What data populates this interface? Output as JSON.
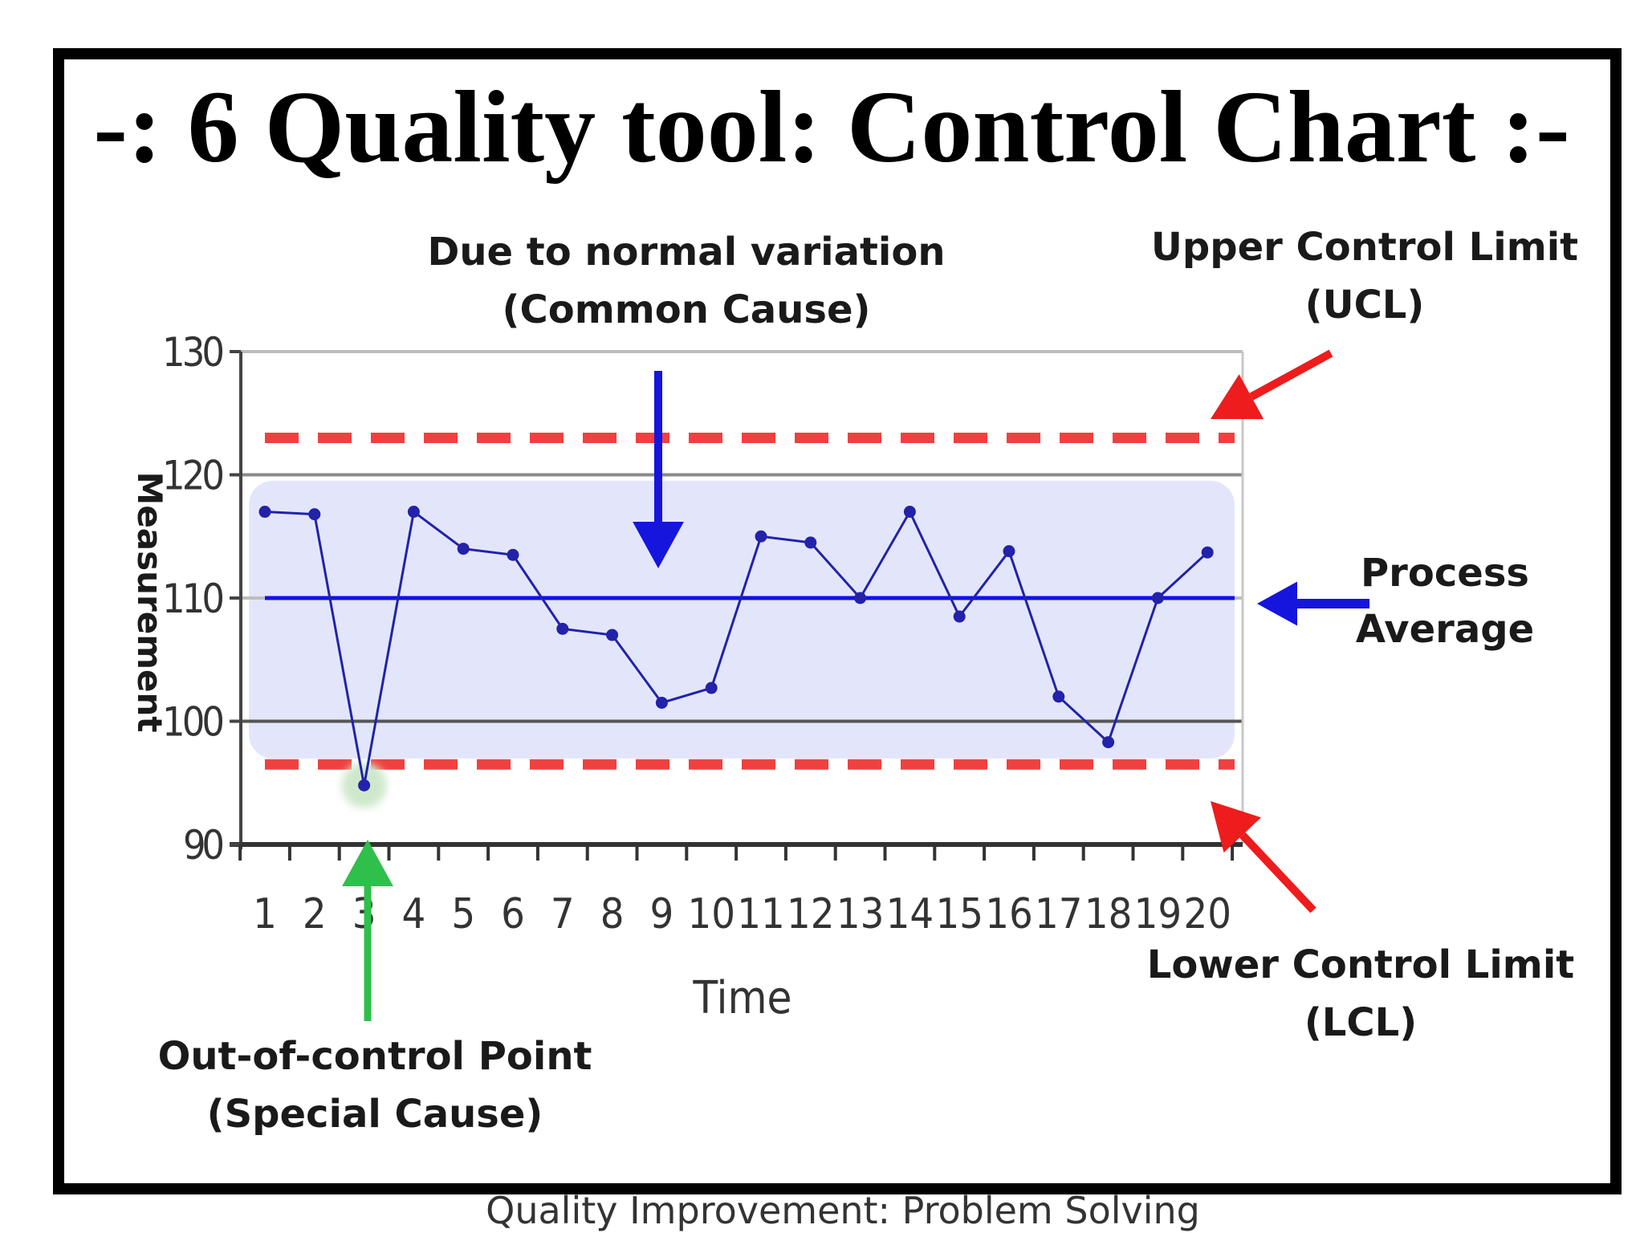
{
  "title": "-: 6 Quality tool: Control Chart :-",
  "footer": "Quality Improvement: Problem Solving",
  "annotations": {
    "common_cause_line1": "Due to normal variation",
    "common_cause_line2": "(Common Cause)",
    "ucl_line1": "Upper Control Limit",
    "ucl_line2": "(UCL)",
    "process_avg_line1": "Process",
    "process_avg_line2": "Average",
    "lcl_line1": "Lower Control Limit",
    "lcl_line2": "(LCL)",
    "special_cause_line1": "Out-of-control Point",
    "special_cause_line2": "(Special Cause)"
  },
  "colors": {
    "series": "#2222aa",
    "average_line": "#1010ee",
    "control_limits": "#f04040",
    "band": "#e3e6fb",
    "arrow_blue": "#1515dd",
    "arrow_red": "#ee1c1c",
    "arrow_green": "#2ec04a",
    "highlight": "#cfe8cc"
  },
  "icons": {
    "common_cause_arrow": "down-arrow",
    "ucl_arrow": "diagonal-arrow",
    "process_average_arrow": "left-arrow",
    "lcl_arrow": "diagonal-arrow",
    "special_cause_arrow": "up-arrow"
  },
  "chart_data": {
    "type": "line",
    "xlabel": "Time",
    "ylabel": "Measurement",
    "x": [
      1,
      2,
      3,
      4,
      5,
      6,
      7,
      8,
      9,
      10,
      11,
      12,
      13,
      14,
      15,
      16,
      17,
      18,
      19,
      20
    ],
    "y_ticks": [
      90,
      100,
      110,
      120,
      130
    ],
    "ylim": [
      90,
      130
    ],
    "series": [
      {
        "values": [
          117,
          116.8,
          94.8,
          117,
          114,
          113.5,
          107.5,
          107,
          101.5,
          102.7,
          115,
          114.5,
          110,
          117,
          108.5,
          113.8,
          102,
          98.3,
          110,
          113.7
        ]
      }
    ],
    "ucl": 123,
    "lcl": 96.5,
    "process_average": 110,
    "out_of_control_point": {
      "x": 3,
      "y": 94.8
    },
    "grid": true
  }
}
